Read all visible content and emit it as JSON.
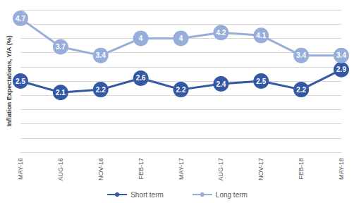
{
  "chart_data": {
    "type": "line",
    "y_label": "Inflation Expectations, Y/A (%)",
    "categories": [
      "MAY-16",
      "AUG-16",
      "NOV-16",
      "FEB-17",
      "MAY-17",
      "AUG-17",
      "NOV-17",
      "FEB-18",
      "MAY-18"
    ],
    "series": [
      {
        "name": "Short term",
        "color": "#3358A4",
        "marker": "circle",
        "line_style": "solid",
        "values": [
          2.5,
          2.1,
          2.2,
          2.6,
          2.2,
          2.4,
          2.5,
          2.2,
          2.9
        ]
      },
      {
        "name": "Long term",
        "color": "#97AEDA",
        "marker": "circle",
        "line_style": "solid",
        "values": [
          4.7,
          3.7,
          3.4,
          4.0,
          4.0,
          4.2,
          4.1,
          3.4,
          3.4
        ]
      }
    ],
    "ylim": [
      0,
      5
    ],
    "yticks": [
      0,
      0.5,
      1,
      1.5,
      2,
      2.5,
      3,
      3.5,
      4,
      4.5,
      5
    ],
    "grid": true,
    "legend": "bottom",
    "data_labels": true,
    "tick_labels": "x"
  }
}
